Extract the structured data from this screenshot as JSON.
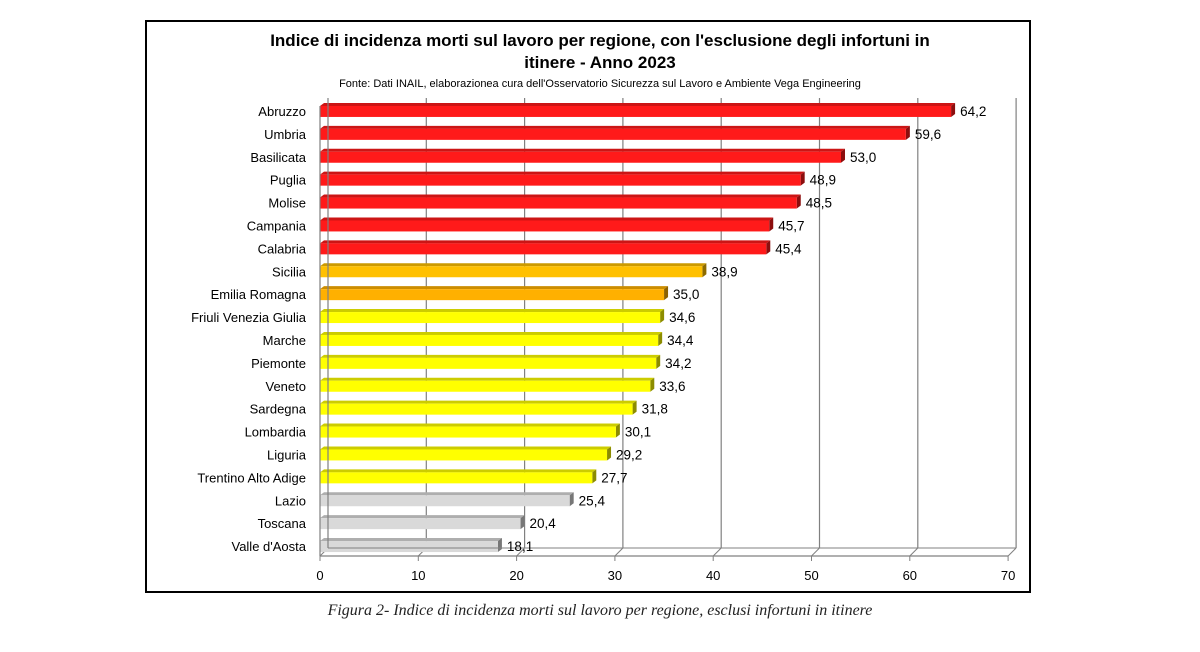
{
  "chart_data": {
    "type": "bar",
    "orientation": "horizontal",
    "title_line1": "Indice di incidenza morti sul lavoro per regione, con l'esclusione degli infortuni in",
    "title_line2": "itinere - Anno 2023",
    "subtitle": "Fonte: Dati INAIL, elaborazionea cura dell'Osservatorio Sicurezza sul Lavoro e Ambiente Vega Engineering",
    "xlabel": "",
    "ylabel": "",
    "xlim": [
      0,
      70
    ],
    "xticks": [
      0,
      10,
      20,
      30,
      40,
      50,
      60,
      70
    ],
    "grid": true,
    "categories": [
      "Abruzzo",
      "Umbria",
      "Basilicata",
      "Puglia",
      "Molise",
      "Campania",
      "Calabria",
      "Sicilia",
      "Emilia Romagna",
      "Friuli Venezia Giulia",
      "Marche",
      "Piemonte",
      "Veneto",
      "Sardegna",
      "Lombardia",
      "Liguria",
      "Trentino Alto Adige",
      "Lazio",
      "Toscana",
      "Valle d'Aosta"
    ],
    "values": [
      64.2,
      59.6,
      53.0,
      48.9,
      48.5,
      45.7,
      45.4,
      38.9,
      35.0,
      34.6,
      34.4,
      34.2,
      33.6,
      31.8,
      30.1,
      29.2,
      27.7,
      25.4,
      20.4,
      18.1
    ],
    "value_labels": [
      "64,2",
      "59,6",
      "53,0",
      "48,9",
      "48,5",
      "45,7",
      "45,4",
      "38,9",
      "35,0",
      "34,6",
      "34,4",
      "34,2",
      "33,6",
      "31,8",
      "30,1",
      "29,2",
      "27,7",
      "25,4",
      "20,4",
      "18,1"
    ],
    "bar_colors": [
      "#ff1a1a",
      "#ff1a1a",
      "#ff1a1a",
      "#ff1a1a",
      "#ff1a1a",
      "#ff1a1a",
      "#ff1a1a",
      "#ffc000",
      "#ffb000",
      "#ffff00",
      "#ffff00",
      "#ffff00",
      "#ffff00",
      "#ffff00",
      "#ffff00",
      "#ffff00",
      "#ffff00",
      "#d9d9d9",
      "#d9d9d9",
      "#d9d9d9"
    ]
  },
  "caption": "Figura 2- Indice di incidenza morti sul lavoro per regione, esclusi infortuni in itinere",
  "colors": {
    "grid": "#808080",
    "axis": "#808080",
    "text": "#000000"
  }
}
